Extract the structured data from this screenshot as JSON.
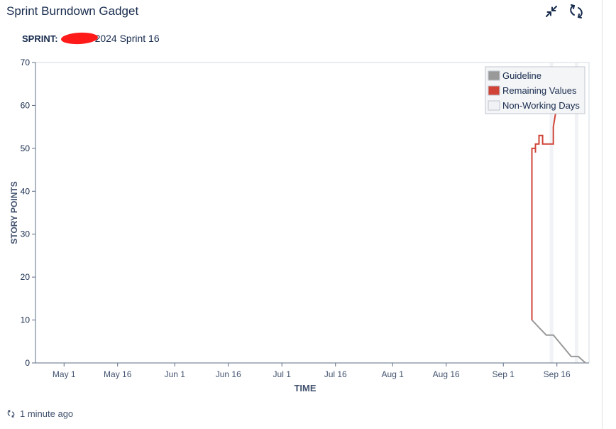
{
  "header": {
    "title": "Sprint Burndown Gadget",
    "minimize_icon": "minimize-icon",
    "refresh_icon": "refresh-icon"
  },
  "sprint": {
    "label": "SPRINT:",
    "name": "2024 Sprint 16"
  },
  "footer": {
    "updated": "1 minute ago",
    "icon": "refresh-icon"
  },
  "chart_data": {
    "type": "line",
    "xlabel": "TIME",
    "ylabel": "STORY POINTS",
    "x_range": [
      "2024-04-23",
      "2024-09-25"
    ],
    "ylim": [
      0,
      70
    ],
    "y_ticks": [
      0,
      10,
      20,
      30,
      40,
      50,
      60,
      70
    ],
    "x_ticks": [
      "May 1",
      "May 16",
      "Jun 1",
      "Jun 16",
      "Jul 1",
      "Jul 16",
      "Aug 1",
      "Aug 16",
      "Sep 1",
      "Sep 16"
    ],
    "x_tick_dates": [
      "2024-05-01",
      "2024-05-16",
      "2024-06-01",
      "2024-06-16",
      "2024-07-01",
      "2024-07-16",
      "2024-08-01",
      "2024-08-16",
      "2024-09-01",
      "2024-09-16"
    ],
    "legend_position": "top-right",
    "legend": [
      "Guideline",
      "Remaining Values",
      "Non-Working Days"
    ],
    "colors": {
      "guideline": "#999999",
      "remaining": "#d04437",
      "non_working": "#f0f2f5"
    },
    "non_working_days": [
      [
        "2024-09-14",
        "2024-09-15"
      ],
      [
        "2024-09-21",
        "2024-09-22"
      ]
    ],
    "series": [
      {
        "name": "Guideline",
        "points": [
          [
            "2024-09-09",
            10
          ],
          [
            "2024-09-13",
            6.5
          ],
          [
            "2024-09-15",
            6.5
          ],
          [
            "2024-09-20",
            1.5
          ],
          [
            "2024-09-22",
            1.5
          ],
          [
            "2024-09-24",
            0
          ]
        ]
      },
      {
        "name": "Remaining Values",
        "points": [
          [
            "2024-09-09",
            10
          ],
          [
            "2024-09-09",
            50
          ],
          [
            "2024-09-10",
            50
          ],
          [
            "2024-09-10",
            49
          ],
          [
            "2024-09-10",
            51
          ],
          [
            "2024-09-11",
            51
          ],
          [
            "2024-09-11",
            53
          ],
          [
            "2024-09-12",
            53
          ],
          [
            "2024-09-12",
            51
          ],
          [
            "2024-09-15",
            51
          ],
          [
            "2024-09-15",
            55
          ],
          [
            "2024-09-16",
            60
          ]
        ]
      }
    ]
  }
}
